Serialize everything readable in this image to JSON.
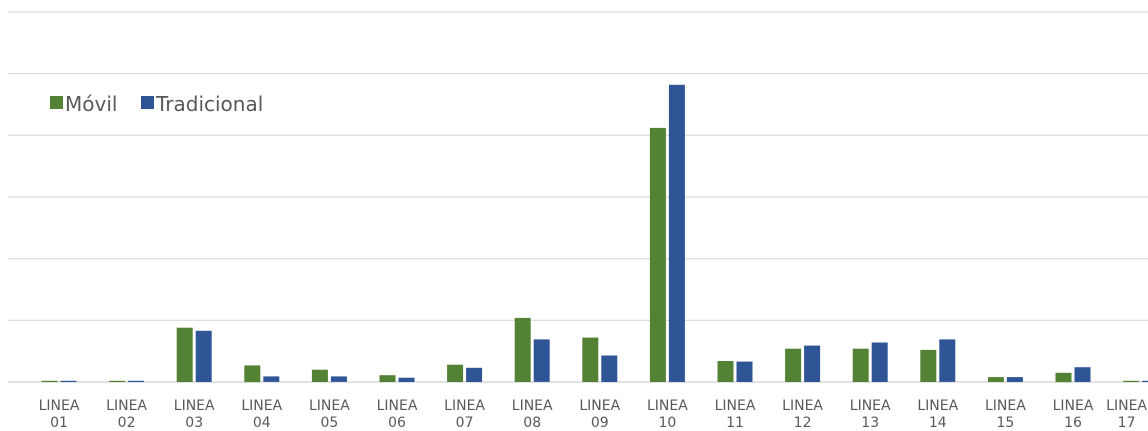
{
  "chart_data": {
    "type": "bar",
    "title": "",
    "xlabel": "",
    "ylabel": "",
    "ylim": [
      0,
      6
    ],
    "grid": true,
    "legend_position": "top-left",
    "categories": [
      [
        "LINEA",
        "01"
      ],
      [
        "LINEA",
        "02"
      ],
      [
        "LINEA",
        "03"
      ],
      [
        "LINEA",
        "04"
      ],
      [
        "LINEA",
        "05"
      ],
      [
        "LINEA",
        "06"
      ],
      [
        "LINEA",
        "07"
      ],
      [
        "LINEA",
        "08"
      ],
      [
        "LINEA",
        "09"
      ],
      [
        "LINEA",
        "10"
      ],
      [
        "LINEA",
        "11"
      ],
      [
        "LINEA",
        "12"
      ],
      [
        "LINEA",
        "13"
      ],
      [
        "LINEA",
        "14"
      ],
      [
        "LINEA",
        "15"
      ],
      [
        "LINEA",
        "16"
      ],
      [
        "LINEA",
        "17"
      ]
    ],
    "series": [
      {
        "name": "Móvil",
        "color": "#548235",
        "values": [
          0.02,
          0.02,
          0.88,
          0.27,
          0.2,
          0.11,
          0.28,
          1.04,
          0.72,
          4.12,
          0.34,
          0.54,
          0.54,
          0.52,
          0.08,
          0.15,
          0.02
        ]
      },
      {
        "name": "Tradicional",
        "color": "#2f5597",
        "values": [
          0.02,
          0.02,
          0.83,
          0.09,
          0.09,
          0.07,
          0.23,
          0.69,
          0.43,
          4.82,
          0.33,
          0.59,
          0.64,
          0.69,
          0.08,
          0.24,
          0.02
        ]
      }
    ]
  }
}
